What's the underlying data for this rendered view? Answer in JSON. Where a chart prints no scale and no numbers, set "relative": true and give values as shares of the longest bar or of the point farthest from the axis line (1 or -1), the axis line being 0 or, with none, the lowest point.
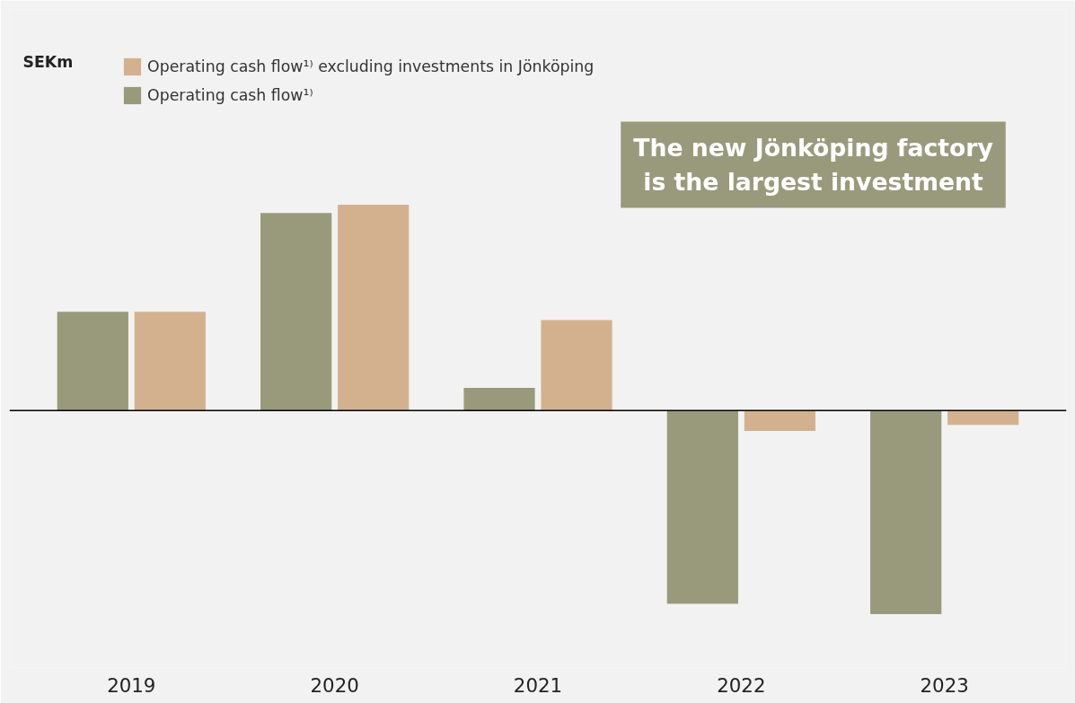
{
  "chart_data": {
    "type": "bar",
    "relative": true,
    "categories": [
      "2019",
      "2020",
      "2021",
      "2022",
      "2023"
    ],
    "series": [
      {
        "name": "Operating cash flow¹⁾",
        "color": "#999a7c",
        "values": [
          0.48,
          0.96,
          0.11,
          -0.94,
          -0.99
        ]
      },
      {
        "name": "Operating cash flow¹⁾ excluding investments in Jönköping",
        "color": "#d4b18e",
        "values": [
          0.48,
          1.0,
          0.44,
          -0.1,
          -0.07
        ]
      }
    ],
    "annotations": [
      "SEKm",
      "The new Jönköping factory\nis the largest investment"
    ],
    "legend": "top left",
    "grid": false
  }
}
